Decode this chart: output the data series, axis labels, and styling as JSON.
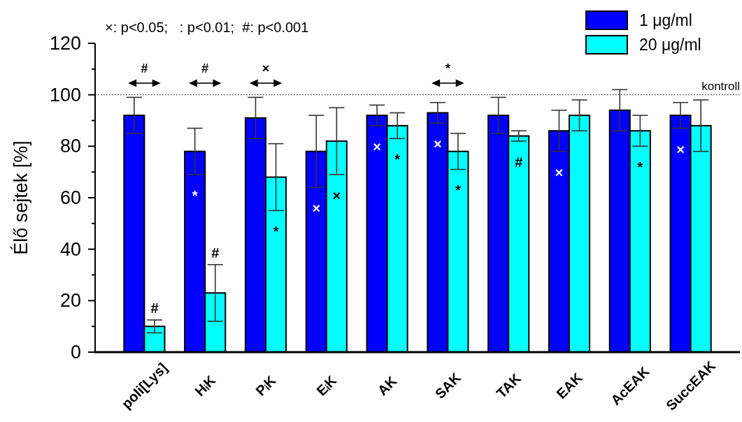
{
  "chart_data": {
    "type": "bar",
    "ylabel": "Élő sejtek [%]",
    "categories": [
      "poli[Lys]",
      "HᵢK",
      "PᵢK",
      "EᵢK",
      "AK",
      "SAK",
      "TAK",
      "EAK",
      "AcEAK",
      "SuccEAK"
    ],
    "series": [
      {
        "name": "1 μg/ml",
        "color": "#0000ff",
        "values": [
          92,
          78,
          91,
          78,
          92,
          93,
          92,
          86,
          94,
          92
        ],
        "errors": [
          7,
          9,
          8,
          14,
          4,
          4,
          7,
          8,
          8,
          5
        ],
        "value_labels": [
          null,
          "*",
          null,
          "×",
          "×",
          "×",
          null,
          "×",
          null,
          "×"
        ]
      },
      {
        "name": "20 μg/ml",
        "color": "#00ffff",
        "values": [
          10,
          23,
          68,
          82,
          88,
          78,
          84,
          92,
          86,
          88
        ],
        "errors": [
          2.5,
          11,
          13,
          13,
          5,
          7,
          2,
          6,
          6,
          10
        ],
        "value_labels": [
          "#",
          "#",
          "*",
          "×",
          "*",
          "*",
          "#",
          null,
          "*",
          null
        ]
      }
    ],
    "ylim": [
      0,
      120
    ],
    "yticks": [
      0,
      {
        "value": 10,
        "label": null
      },
      20,
      {
        "value": 30,
        "label": null
      },
      40,
      {
        "value": 50,
        "label": null
      },
      60,
      {
        "value": 70,
        "label": null
      },
      80,
      {
        "value": 90,
        "label": null
      },
      100,
      {
        "value": 110,
        "label": null
      },
      120
    ],
    "legend": "top right",
    "ref_lines": [
      {
        "axis": "y",
        "value": 100,
        "label": "kontroll",
        "line_style": "dotted",
        "color": "#000000"
      }
    ],
    "annotations": [
      "×: p<0.05;   : p<0.01;  #: p<0.001",
      "#",
      "#",
      "×",
      "*"
    ]
  }
}
